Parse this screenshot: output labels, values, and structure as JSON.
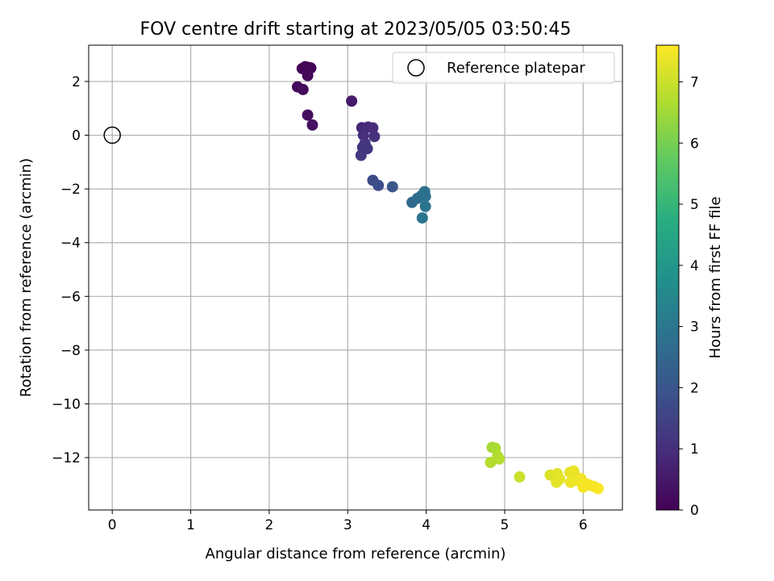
{
  "chart_data": {
    "type": "scatter",
    "title": "FOV centre drift starting at 2023/05/05 03:50:45",
    "xlabel": "Angular distance from reference (arcmin)",
    "ylabel": "Rotation from reference (arcmin)",
    "xlim": [
      -0.3,
      6.5
    ],
    "ylim": [
      -13.95,
      3.35
    ],
    "xticks": [
      0,
      1,
      2,
      3,
      4,
      5,
      6
    ],
    "yticks": [
      2,
      0,
      -2,
      -4,
      -6,
      -8,
      -10,
      -12
    ],
    "grid": true,
    "legend": {
      "position": "top-right",
      "entries": [
        "Reference platepar"
      ]
    },
    "reference_point": {
      "x": 0,
      "y": 0,
      "label": "Reference platepar"
    },
    "colorbar": {
      "label": "Hours from first FF file",
      "min": 0,
      "max": 7.6,
      "ticks": [
        0,
        1,
        2,
        3,
        4,
        5,
        6,
        7
      ],
      "colormap": "viridis"
    },
    "points": [
      {
        "x": 2.42,
        "y": 2.48,
        "c": 0.0
      },
      {
        "x": 2.46,
        "y": 2.55,
        "c": 0.03
      },
      {
        "x": 2.5,
        "y": 2.52,
        "c": 0.05
      },
      {
        "x": 2.53,
        "y": 2.5,
        "c": 0.07
      },
      {
        "x": 2.48,
        "y": 2.45,
        "c": 0.09
      },
      {
        "x": 2.49,
        "y": 2.22,
        "c": 0.12
      },
      {
        "x": 2.36,
        "y": 1.8,
        "c": 0.18
      },
      {
        "x": 2.43,
        "y": 1.7,
        "c": 0.22
      },
      {
        "x": 2.49,
        "y": 0.75,
        "c": 0.3
      },
      {
        "x": 2.55,
        "y": 0.38,
        "c": 0.35
      },
      {
        "x": 3.05,
        "y": 1.27,
        "c": 0.55
      },
      {
        "x": 3.18,
        "y": 0.28,
        "c": 0.8
      },
      {
        "x": 3.22,
        "y": 0.25,
        "c": 0.85
      },
      {
        "x": 3.26,
        "y": 0.3,
        "c": 0.9
      },
      {
        "x": 3.32,
        "y": 0.27,
        "c": 0.95
      },
      {
        "x": 3.2,
        "y": 0.0,
        "c": 1.0
      },
      {
        "x": 3.34,
        "y": -0.05,
        "c": 1.05
      },
      {
        "x": 3.22,
        "y": -0.3,
        "c": 1.1
      },
      {
        "x": 3.25,
        "y": -0.5,
        "c": 1.15
      },
      {
        "x": 3.19,
        "y": -0.45,
        "c": 1.2
      },
      {
        "x": 3.17,
        "y": -0.75,
        "c": 1.25
      },
      {
        "x": 3.32,
        "y": -1.68,
        "c": 1.7
      },
      {
        "x": 3.39,
        "y": -1.87,
        "c": 1.8
      },
      {
        "x": 3.57,
        "y": -1.92,
        "c": 2.05
      },
      {
        "x": 3.82,
        "y": -2.5,
        "c": 2.55
      },
      {
        "x": 3.89,
        "y": -2.35,
        "c": 2.65
      },
      {
        "x": 3.94,
        "y": -2.25,
        "c": 2.72
      },
      {
        "x": 3.98,
        "y": -2.1,
        "c": 2.8
      },
      {
        "x": 3.99,
        "y": -2.28,
        "c": 2.85
      },
      {
        "x": 3.99,
        "y": -2.65,
        "c": 2.9
      },
      {
        "x": 3.95,
        "y": -3.08,
        "c": 2.95
      },
      {
        "x": 4.84,
        "y": -11.62,
        "c": 6.55
      },
      {
        "x": 4.88,
        "y": -11.65,
        "c": 6.6
      },
      {
        "x": 4.91,
        "y": -11.95,
        "c": 6.7
      },
      {
        "x": 4.93,
        "y": -12.05,
        "c": 6.75
      },
      {
        "x": 4.82,
        "y": -12.18,
        "c": 6.72
      },
      {
        "x": 5.19,
        "y": -12.72,
        "c": 7.0
      },
      {
        "x": 5.58,
        "y": -12.65,
        "c": 7.2
      },
      {
        "x": 5.67,
        "y": -12.6,
        "c": 7.25
      },
      {
        "x": 5.66,
        "y": -12.92,
        "c": 7.28
      },
      {
        "x": 5.7,
        "y": -12.8,
        "c": 7.3
      },
      {
        "x": 5.83,
        "y": -12.55,
        "c": 7.35
      },
      {
        "x": 5.88,
        "y": -12.5,
        "c": 7.38
      },
      {
        "x": 5.84,
        "y": -12.92,
        "c": 7.4
      },
      {
        "x": 5.92,
        "y": -12.85,
        "c": 7.42
      },
      {
        "x": 5.97,
        "y": -12.78,
        "c": 7.45
      },
      {
        "x": 6.02,
        "y": -12.95,
        "c": 7.48
      },
      {
        "x": 6.0,
        "y": -13.1,
        "c": 7.5
      },
      {
        "x": 6.08,
        "y": -13.02,
        "c": 7.52
      },
      {
        "x": 6.14,
        "y": -13.08,
        "c": 7.55
      },
      {
        "x": 6.19,
        "y": -13.15,
        "c": 7.58
      }
    ]
  }
}
